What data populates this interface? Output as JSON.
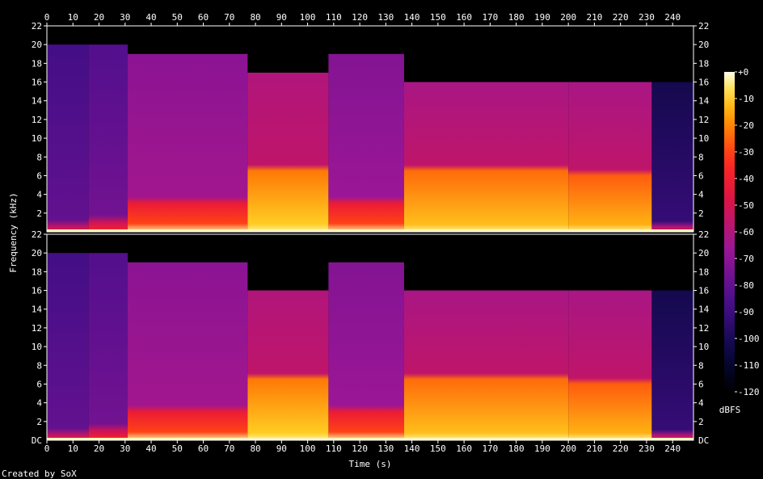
{
  "chart_data": {
    "type": "heatmap",
    "subtype": "spectrogram",
    "xlabel": "Time (s)",
    "ylabel": "Frequency (kHz)",
    "footer": "Created by SoX",
    "colorbar_label": "dBFS",
    "xlim": [
      0,
      248
    ],
    "ylim": [
      0,
      22
    ],
    "x_ticks": [
      0,
      10,
      20,
      30,
      40,
      50,
      60,
      70,
      80,
      90,
      100,
      110,
      120,
      130,
      140,
      150,
      160,
      170,
      180,
      190,
      200,
      210,
      220,
      230,
      240
    ],
    "y_ticks": [
      2,
      4,
      6,
      8,
      10,
      12,
      14,
      16,
      18,
      20,
      22
    ],
    "y_bottom_label": "DC",
    "colorbar_ticks": [
      "+0",
      "-10",
      "-20",
      "-30",
      "-40",
      "-50",
      "-60",
      "-70",
      "-80",
      "-90",
      "-100",
      "-110",
      "-120"
    ],
    "colorbar_range": [
      -120,
      0
    ],
    "channels": [
      {
        "segments": [
          {
            "t0": 0,
            "t1": 16,
            "cutoff_khz": 20,
            "floor_db": -80,
            "top_db": -88,
            "low_db": -55,
            "bright_khz": 0.5
          },
          {
            "t0": 16,
            "t1": 31,
            "cutoff_khz": 20,
            "floor_db": -76,
            "top_db": -84,
            "low_db": -52,
            "bright_khz": 1.0
          },
          {
            "t0": 31,
            "t1": 77,
            "cutoff_khz": 19,
            "floor_db": -64,
            "top_db": -70,
            "low_db": -42,
            "bright_khz": 3.0
          },
          {
            "t0": 77,
            "t1": 108,
            "cutoff_khz": 17,
            "floor_db": -56,
            "top_db": -60,
            "low_db": -22,
            "bright_khz": 6.5
          },
          {
            "t0": 108,
            "t1": 137,
            "cutoff_khz": 19,
            "floor_db": -66,
            "top_db": -72,
            "low_db": -42,
            "bright_khz": 3.0
          },
          {
            "t0": 137,
            "t1": 200,
            "cutoff_khz": 16,
            "floor_db": -56,
            "top_db": -62,
            "low_db": -24,
            "bright_khz": 6.5
          },
          {
            "t0": 200,
            "t1": 232,
            "cutoff_khz": 16,
            "floor_db": -56,
            "top_db": -62,
            "low_db": -26,
            "bright_khz": 6.0
          },
          {
            "t0": 232,
            "t1": 248,
            "cutoff_khz": 16,
            "floor_db": -92,
            "top_db": -102,
            "low_db": -60,
            "bright_khz": 0.5
          }
        ]
      },
      {
        "segments": [
          {
            "t0": 0,
            "t1": 16,
            "cutoff_khz": 20,
            "floor_db": -80,
            "top_db": -88,
            "low_db": -55,
            "bright_khz": 0.5
          },
          {
            "t0": 16,
            "t1": 31,
            "cutoff_khz": 20,
            "floor_db": -76,
            "top_db": -84,
            "low_db": -52,
            "bright_khz": 1.0
          },
          {
            "t0": 31,
            "t1": 77,
            "cutoff_khz": 19,
            "floor_db": -64,
            "top_db": -70,
            "low_db": -42,
            "bright_khz": 3.0
          },
          {
            "t0": 77,
            "t1": 108,
            "cutoff_khz": 16,
            "floor_db": -56,
            "top_db": -60,
            "low_db": -22,
            "bright_khz": 6.5
          },
          {
            "t0": 108,
            "t1": 137,
            "cutoff_khz": 19,
            "floor_db": -66,
            "top_db": -72,
            "low_db": -42,
            "bright_khz": 3.0
          },
          {
            "t0": 137,
            "t1": 200,
            "cutoff_khz": 16,
            "floor_db": -56,
            "top_db": -62,
            "low_db": -24,
            "bright_khz": 6.5
          },
          {
            "t0": 200,
            "t1": 232,
            "cutoff_khz": 16,
            "floor_db": -56,
            "top_db": -62,
            "low_db": -26,
            "bright_khz": 6.0
          },
          {
            "t0": 232,
            "t1": 248,
            "cutoff_khz": 16,
            "floor_db": -92,
            "top_db": -102,
            "low_db": -60,
            "bright_khz": 0.5
          }
        ]
      }
    ]
  }
}
